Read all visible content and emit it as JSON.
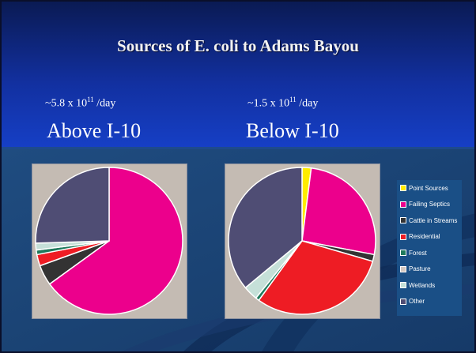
{
  "slide": {
    "title": "Sources of E. coli to Adams Bayou",
    "left": {
      "rate_prefix": "~5.8 x 10",
      "rate_exp": "11",
      "rate_unit": " /day",
      "location": "Above I-10"
    },
    "right": {
      "rate_prefix": "~1.5 x 10",
      "rate_exp": "11",
      "rate_unit": " /day",
      "location": "Below I-10"
    }
  },
  "legend": {
    "items": [
      {
        "label": "Point Sources",
        "color": "#ffec00"
      },
      {
        "label": "Failing Septics",
        "color": "#ec008c"
      },
      {
        "label": "Cattle in Streams",
        "color": "#333333"
      },
      {
        "label": "Residential",
        "color": "#ee1c24"
      },
      {
        "label": "Forest",
        "color": "#1f7a5c"
      },
      {
        "label": "Pasture",
        "color": "#d4c8c0"
      },
      {
        "label": "Wetlands",
        "color": "#c5e0d8"
      },
      {
        "label": "Other",
        "color": "#4f4d74"
      }
    ]
  },
  "chart_data": [
    {
      "type": "pie",
      "title": "Above I-10",
      "categories": [
        "Point Sources",
        "Failing Septics",
        "Cattle in Streams",
        "Residential",
        "Forest",
        "Pasture",
        "Wetlands",
        "Other"
      ],
      "colors": [
        "#ffec00",
        "#ec008c",
        "#333333",
        "#ee1c24",
        "#1f7a5c",
        "#d4c8c0",
        "#c5e0d8",
        "#4f4d74"
      ],
      "values": [
        0,
        65.0,
        4.5,
        2.5,
        1.0,
        0,
        1.5,
        25.5
      ]
    },
    {
      "type": "pie",
      "title": "Below I-10",
      "categories": [
        "Point Sources",
        "Failing Septics",
        "Cattle in Streams",
        "Residential",
        "Forest",
        "Pasture",
        "Wetlands",
        "Other"
      ],
      "colors": [
        "#ffec00",
        "#ec008c",
        "#333333",
        "#ee1c24",
        "#1f7a5c",
        "#d4c8c0",
        "#c5e0d8",
        "#4f4d74"
      ],
      "values": [
        2.0,
        26.0,
        1.5,
        30.5,
        0.8,
        0,
        3.2,
        36.0
      ]
    }
  ]
}
